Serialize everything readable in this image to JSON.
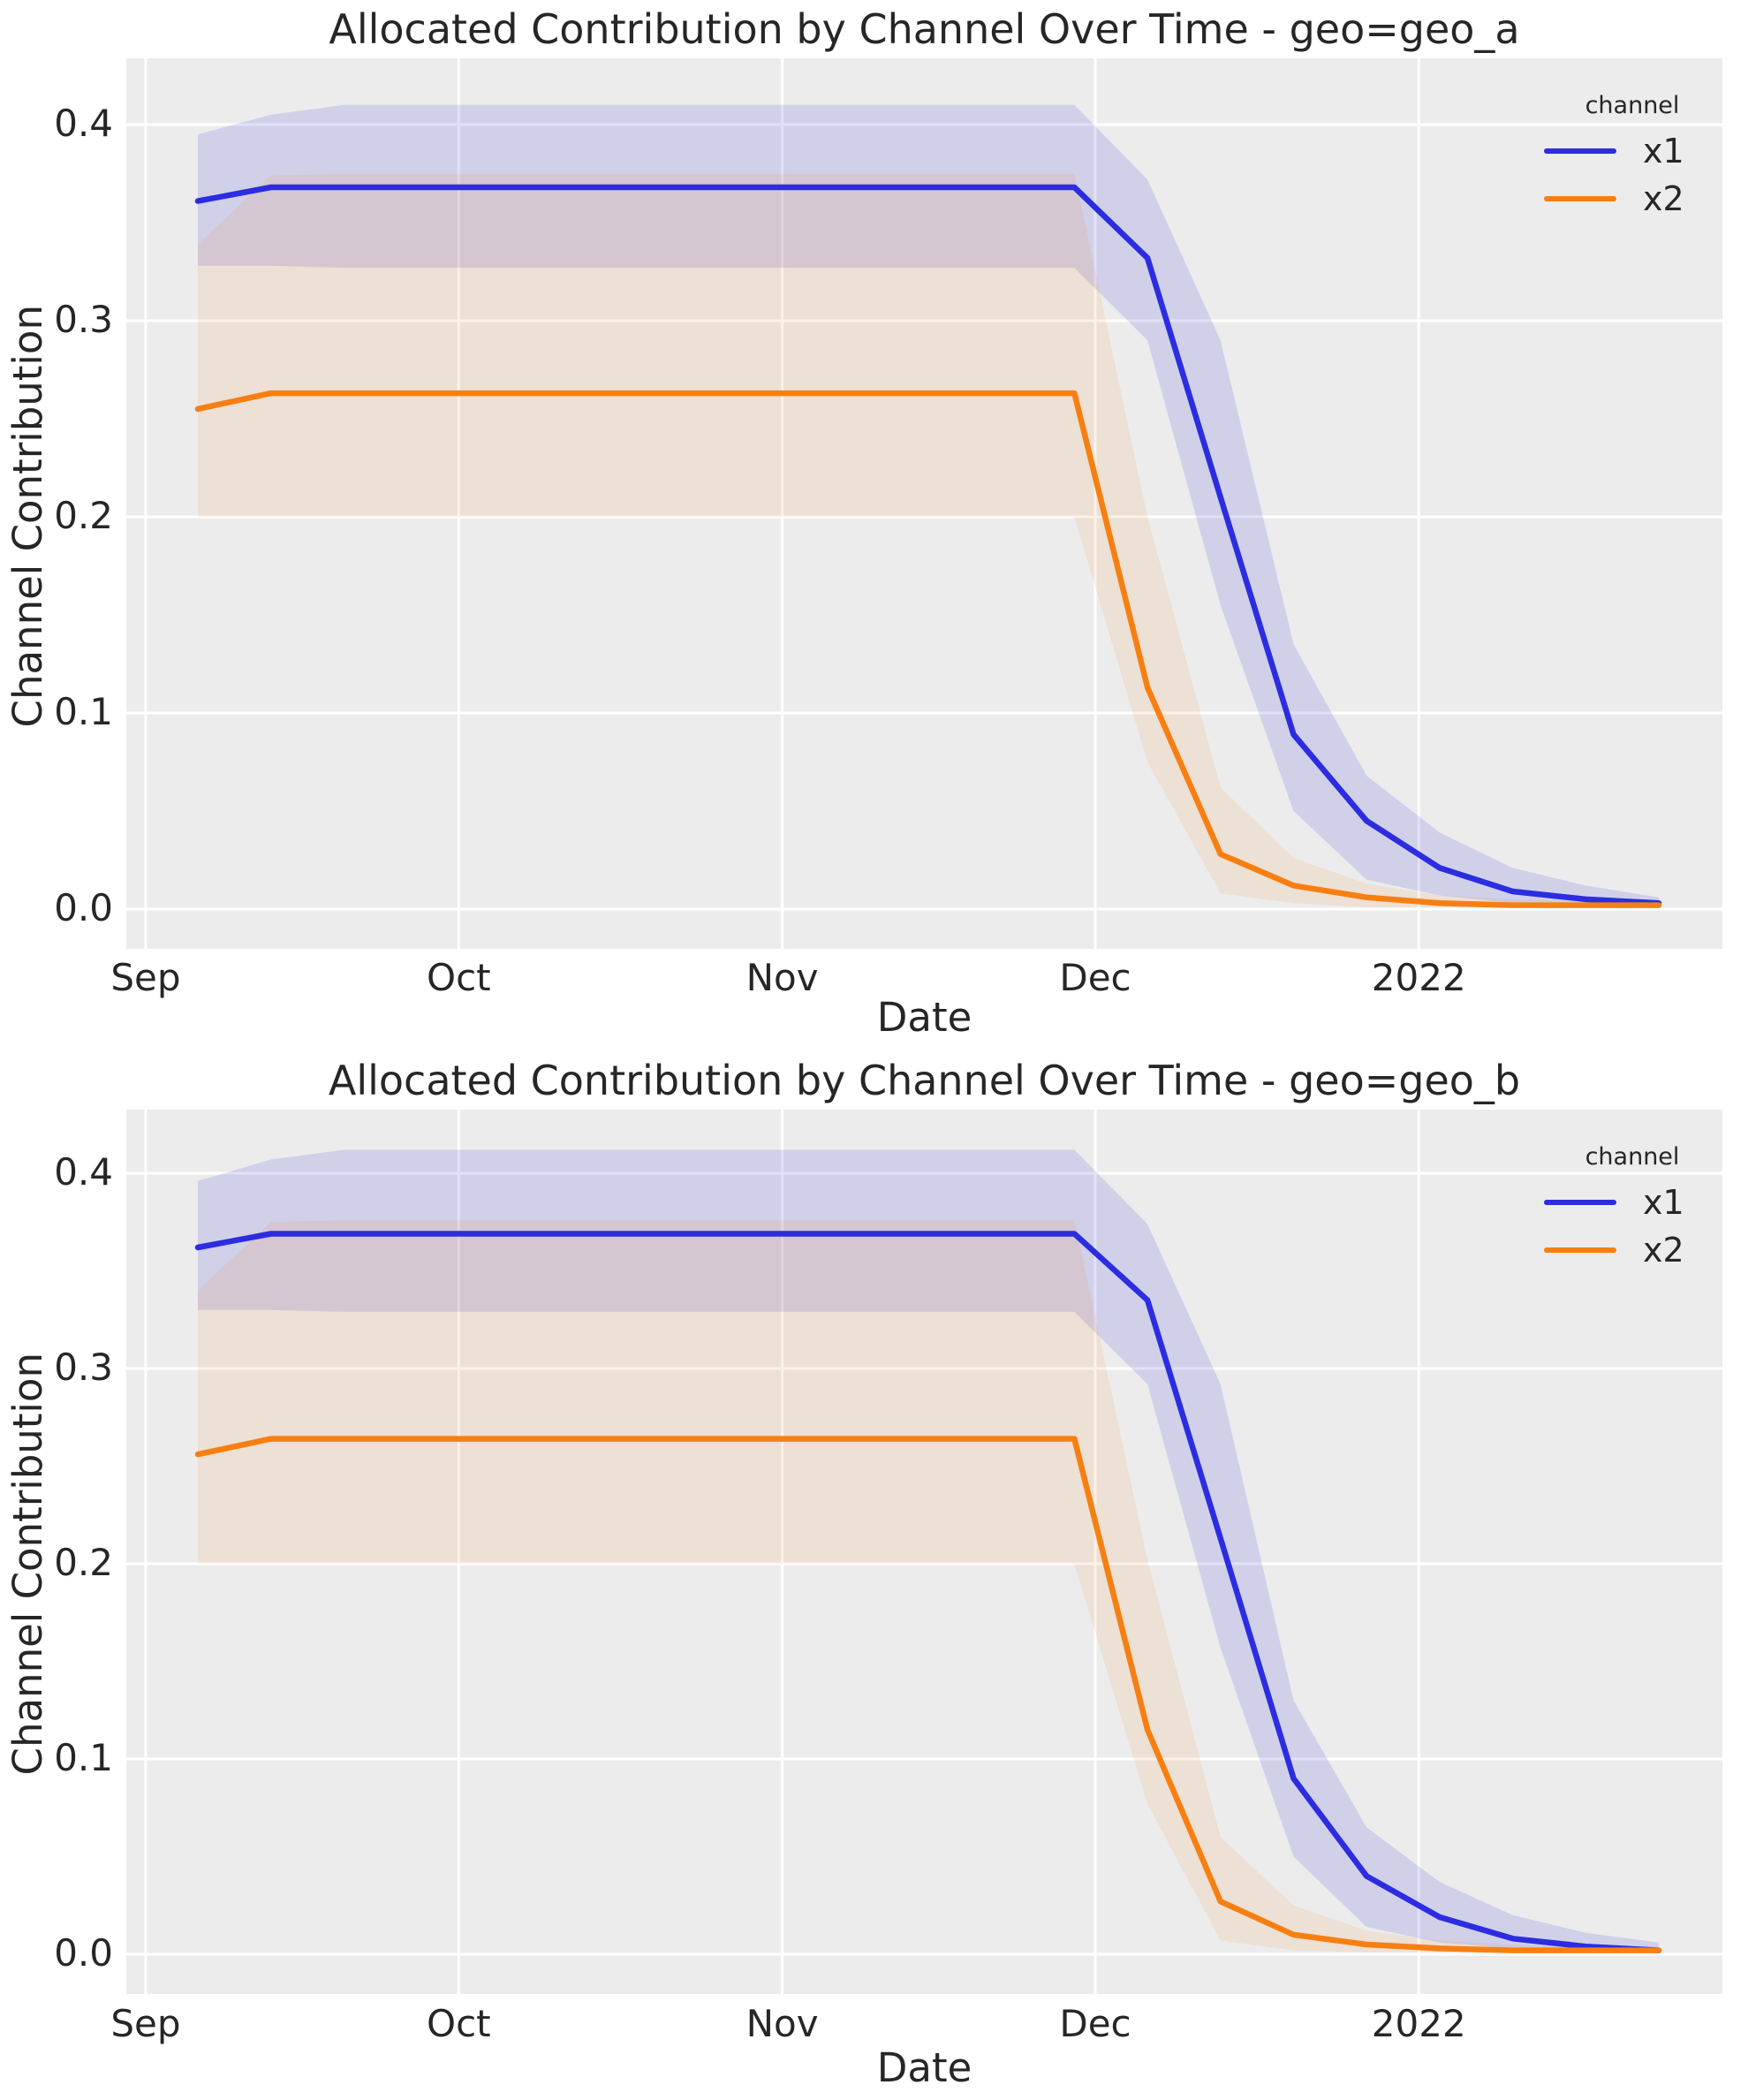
{
  "figure": {
    "background": "#ffffff",
    "plot_background": "#ececec",
    "grid_color": "#ffffff",
    "text_color": "#262626"
  },
  "chart_data": [
    {
      "type": "line",
      "title": "Allocated Contribution by Channel Over Time - geo=geo_a",
      "xlabel": "Date",
      "ylabel": "Channel Contribution",
      "legend_title": "channel",
      "legend_position": "upper right",
      "grid": true,
      "ylim": [
        -0.02,
        0.433
      ],
      "yticks": [
        {
          "label": "0.0",
          "value": 0.0
        },
        {
          "label": "0.1",
          "value": 0.1
        },
        {
          "label": "0.2",
          "value": 0.2
        },
        {
          "label": "0.3",
          "value": 0.3
        },
        {
          "label": "0.4",
          "value": 0.4
        }
      ],
      "xticks": [
        {
          "label": "Sep",
          "day": -5
        },
        {
          "label": "Oct",
          "day": 25
        },
        {
          "label": "Nov",
          "day": 56
        },
        {
          "label": "Dec",
          "day": 86
        },
        {
          "label": "2022",
          "day": 117
        }
      ],
      "dates": [
        "2021-09-06",
        "2021-09-13",
        "2021-09-20",
        "2021-09-27",
        "2021-10-04",
        "2021-10-11",
        "2021-10-18",
        "2021-10-25",
        "2021-11-01",
        "2021-11-08",
        "2021-11-15",
        "2021-11-22",
        "2021-11-29",
        "2021-12-06",
        "2021-12-13",
        "2021-12-20",
        "2021-12-27",
        "2022-01-03",
        "2022-01-10",
        "2022-01-17",
        "2022-01-24"
      ],
      "series": [
        {
          "name": "x1",
          "color": "#2c2ce0",
          "band_color": "rgba(60,60,220,0.16)",
          "values": [
            0.361,
            0.368,
            0.368,
            0.368,
            0.368,
            0.368,
            0.368,
            0.368,
            0.368,
            0.368,
            0.368,
            0.368,
            0.368,
            0.332,
            0.21,
            0.089,
            0.045,
            0.021,
            0.009,
            0.005,
            0.003
          ],
          "ci_lo": [
            0.328,
            0.328,
            0.327,
            0.327,
            0.327,
            0.327,
            0.327,
            0.327,
            0.327,
            0.327,
            0.327,
            0.327,
            0.327,
            0.29,
            0.155,
            0.05,
            0.015,
            0.007,
            0.003,
            0.002,
            0.001
          ],
          "ci_hi": [
            0.395,
            0.405,
            0.41,
            0.41,
            0.41,
            0.41,
            0.41,
            0.41,
            0.41,
            0.41,
            0.41,
            0.41,
            0.41,
            0.372,
            0.29,
            0.135,
            0.068,
            0.039,
            0.021,
            0.012,
            0.006
          ]
        },
        {
          "name": "x2",
          "color": "#f77f12",
          "band_color": "rgba(247,127,18,0.11)",
          "values": [
            0.255,
            0.263,
            0.263,
            0.263,
            0.263,
            0.263,
            0.263,
            0.263,
            0.263,
            0.263,
            0.263,
            0.263,
            0.263,
            0.113,
            0.028,
            0.012,
            0.006,
            0.003,
            0.002,
            0.002,
            0.002
          ],
          "ci_lo": [
            0.2,
            0.2,
            0.2,
            0.2,
            0.2,
            0.2,
            0.2,
            0.2,
            0.2,
            0.2,
            0.2,
            0.2,
            0.2,
            0.075,
            0.008,
            0.003,
            0.001,
            0.001,
            0.001,
            0.001,
            0.001
          ],
          "ci_hi": [
            0.339,
            0.374,
            0.375,
            0.375,
            0.375,
            0.375,
            0.375,
            0.375,
            0.375,
            0.375,
            0.375,
            0.375,
            0.375,
            0.2,
            0.062,
            0.026,
            0.013,
            0.007,
            0.005,
            0.004,
            0.004
          ]
        }
      ]
    },
    {
      "type": "line",
      "title": "Allocated Contribution by Channel Over Time - geo=geo_b",
      "xlabel": "Date",
      "ylabel": "Channel Contribution",
      "legend_title": "channel",
      "legend_position": "upper right",
      "grid": true,
      "ylim": [
        -0.02,
        0.433
      ],
      "yticks": [
        {
          "label": "0.0",
          "value": 0.0
        },
        {
          "label": "0.1",
          "value": 0.1
        },
        {
          "label": "0.2",
          "value": 0.2
        },
        {
          "label": "0.3",
          "value": 0.3
        },
        {
          "label": "0.4",
          "value": 0.4
        }
      ],
      "xticks": [
        {
          "label": "Sep",
          "day": -5
        },
        {
          "label": "Oct",
          "day": 25
        },
        {
          "label": "Nov",
          "day": 56
        },
        {
          "label": "Dec",
          "day": 86
        },
        {
          "label": "2022",
          "day": 117
        }
      ],
      "dates": [
        "2021-09-06",
        "2021-09-13",
        "2021-09-20",
        "2021-09-27",
        "2021-10-04",
        "2021-10-11",
        "2021-10-18",
        "2021-10-25",
        "2021-11-01",
        "2021-11-08",
        "2021-11-15",
        "2021-11-22",
        "2021-11-29",
        "2021-12-06",
        "2021-12-13",
        "2021-12-20",
        "2021-12-27",
        "2022-01-03",
        "2022-01-10",
        "2022-01-17",
        "2022-01-24"
      ],
      "series": [
        {
          "name": "x1",
          "color": "#2c2ce0",
          "band_color": "rgba(60,60,220,0.16)",
          "values": [
            0.362,
            0.369,
            0.369,
            0.369,
            0.369,
            0.369,
            0.369,
            0.369,
            0.369,
            0.369,
            0.369,
            0.369,
            0.369,
            0.335,
            0.213,
            0.09,
            0.04,
            0.019,
            0.008,
            0.004,
            0.002
          ],
          "ci_lo": [
            0.33,
            0.33,
            0.329,
            0.329,
            0.329,
            0.329,
            0.329,
            0.329,
            0.329,
            0.329,
            0.329,
            0.329,
            0.329,
            0.292,
            0.157,
            0.05,
            0.014,
            0.006,
            0.003,
            0.002,
            0.001
          ],
          "ci_hi": [
            0.396,
            0.407,
            0.412,
            0.412,
            0.412,
            0.412,
            0.412,
            0.412,
            0.412,
            0.412,
            0.412,
            0.412,
            0.412,
            0.374,
            0.292,
            0.13,
            0.065,
            0.037,
            0.02,
            0.011,
            0.006
          ]
        },
        {
          "name": "x2",
          "color": "#f77f12",
          "band_color": "rgba(247,127,18,0.11)",
          "values": [
            0.256,
            0.264,
            0.264,
            0.264,
            0.264,
            0.264,
            0.264,
            0.264,
            0.264,
            0.264,
            0.264,
            0.264,
            0.264,
            0.115,
            0.027,
            0.01,
            0.005,
            0.003,
            0.002,
            0.002,
            0.002
          ],
          "ci_lo": [
            0.2,
            0.2,
            0.2,
            0.2,
            0.2,
            0.2,
            0.2,
            0.2,
            0.2,
            0.2,
            0.2,
            0.2,
            0.2,
            0.077,
            0.007,
            0.002,
            0.001,
            0.001,
            0.001,
            0.001,
            0.001
          ],
          "ci_hi": [
            0.34,
            0.375,
            0.376,
            0.376,
            0.376,
            0.376,
            0.376,
            0.376,
            0.376,
            0.376,
            0.376,
            0.376,
            0.376,
            0.202,
            0.06,
            0.025,
            0.012,
            0.007,
            0.005,
            0.004,
            0.004
          ]
        }
      ]
    }
  ]
}
